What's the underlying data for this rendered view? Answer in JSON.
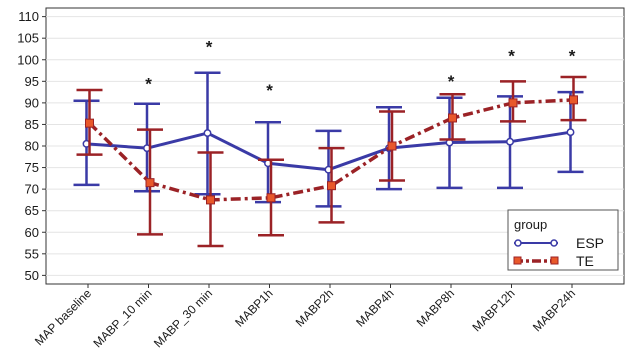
{
  "colors": {
    "esp": "#3a3aa6",
    "te": "#c0392b",
    "te_bar": "#9b2226",
    "te_marker": "#e8582a",
    "grid": "#e4e4e4",
    "axis": "#333333"
  },
  "chart_data": {
    "type": "line",
    "categories": [
      "MAP baseline",
      "MABP_10 min",
      "MABP_30 min",
      "MABP1h",
      "MABP2h",
      "MABP4h",
      "MABP8h",
      "MABP12h",
      "MABP24h"
    ],
    "ylim": [
      48,
      112
    ],
    "yticks": [
      50,
      55,
      60,
      65,
      70,
      75,
      80,
      85,
      90,
      95,
      100,
      105,
      110
    ],
    "grid": "horizontal",
    "legend_position": "bottom-right",
    "legend_title": "group",
    "series": [
      {
        "name": "ESP",
        "values": [
          80.5,
          79.5,
          83,
          76,
          74.5,
          79.5,
          80.8,
          81,
          83.2
        ],
        "lower": [
          71,
          69.5,
          68.8,
          67,
          66,
          70,
          70.3,
          70.3,
          74
        ],
        "upper": [
          90.5,
          89.8,
          97,
          85.5,
          83.5,
          89,
          91.2,
          91.5,
          92.5
        ]
      },
      {
        "name": "TE",
        "values": [
          85.3,
          71.5,
          67.5,
          68,
          70.8,
          80,
          86.5,
          90,
          90.7
        ],
        "lower": [
          78,
          59.5,
          56.8,
          59.3,
          62.3,
          72,
          81.5,
          85.7,
          86
        ],
        "upper": [
          93,
          83.8,
          78.5,
          76.8,
          79.5,
          88,
          92,
          95,
          96
        ]
      }
    ],
    "annotations": [
      {
        "category": "MABP_10 min",
        "text": "*",
        "y": 95
      },
      {
        "category": "MABP_30 min",
        "text": "*",
        "y": 103.5
      },
      {
        "category": "MABP1h",
        "text": "*",
        "y": 93.5
      },
      {
        "category": "MABP8h",
        "text": "*",
        "y": 95.5
      },
      {
        "category": "MABP12h",
        "text": "*",
        "y": 101.5
      },
      {
        "category": "MABP24h",
        "text": "*",
        "y": 101.5
      }
    ]
  }
}
